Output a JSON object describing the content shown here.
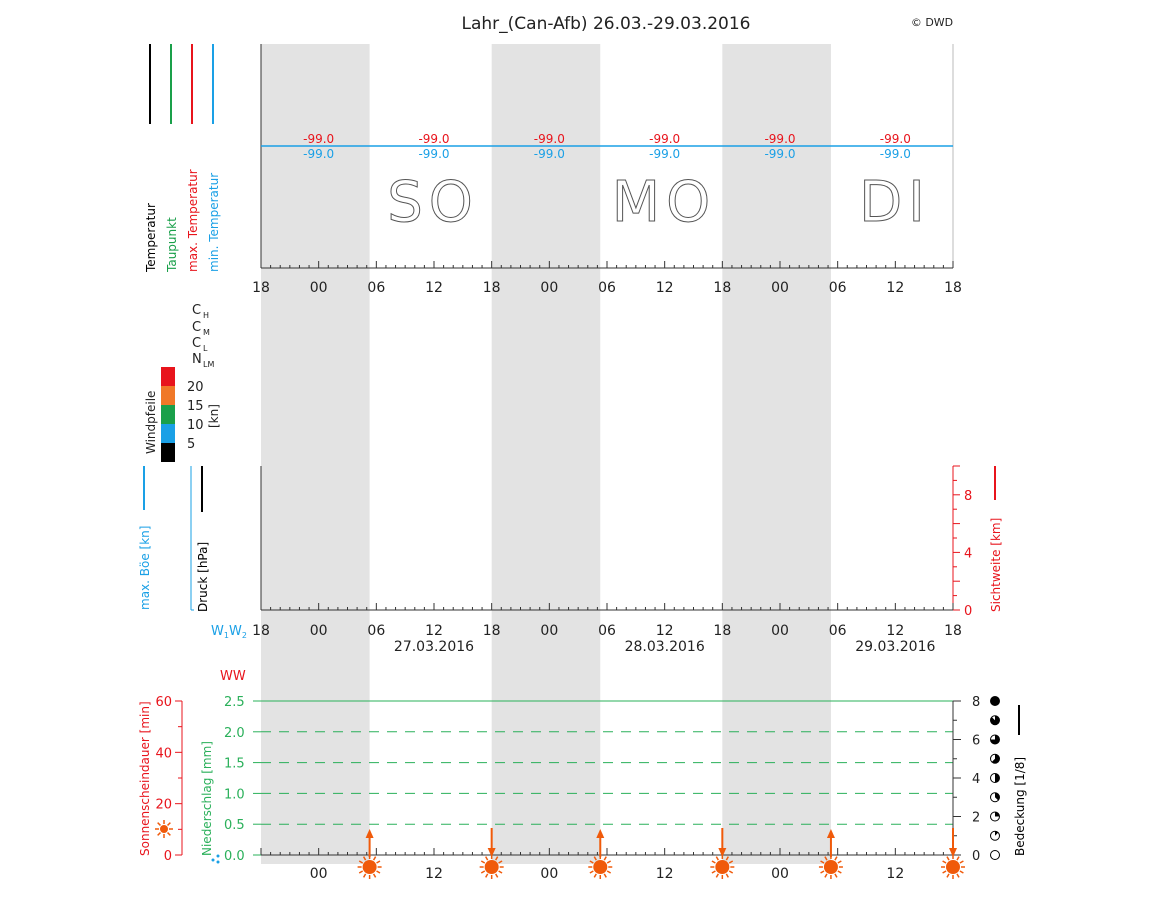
{
  "title": "Lahr_(Can-Afb) 26.03.-29.03.2016",
  "copyright": "© DWD",
  "colors": {
    "temperature": "#000000",
    "dewpoint": "#1aa04a",
    "max_temp": "#e8141c",
    "min_temp": "#1aa0e6",
    "gust": "#1aa0e6",
    "visibility": "#e8141c",
    "sunshine": "#e8141c",
    "precip": "#2ab05a",
    "sun_symbol": "#f05a0a",
    "night_shade": "#e3e3e3"
  },
  "legend": {
    "temperatur": "Temperatur",
    "taupunkt": "Taupunkt",
    "max_temperatur": "max. Temperatur",
    "min_temperatur": "min. Temperatur",
    "cloud_ch_sym": "C",
    "cloud_ch_sub": "H",
    "cloud_cm_sym": "C",
    "cloud_cm_sub": "M",
    "cloud_cl_sym": "C",
    "cloud_cl_sub": "L",
    "cloud_n_sym": "N",
    "cloud_n_sub": "LM",
    "windpfeile": "Windpfeile",
    "wind_unit": "[kn]",
    "wind_scale": [
      {
        "label": "20",
        "color": "#e8141c"
      },
      {
        "label": "15",
        "color": "#f07828"
      },
      {
        "label": "10",
        "color": "#1aa04a"
      },
      {
        "label": "5",
        "color": "#1aa0e6"
      },
      {
        "label": "",
        "color": "#000000"
      }
    ],
    "max_boe": "max. Böe [kn]",
    "druck": "Druck [hPa]",
    "sichtweite": "Sichtweite [km]",
    "w1w2": "W1W2",
    "ww": "WW",
    "sonnenschein": "Sonnenscheindauer [min]",
    "niederschlag": "Niederschlag [mm]",
    "bedeckung": "Bedeckung [1/8]"
  },
  "day_labels": [
    "SO",
    "MO",
    "DI"
  ],
  "date_labels": [
    "27.03.2016",
    "28.03.2016",
    "29.03.2016"
  ],
  "hour_ticks": [
    "18",
    "00",
    "06",
    "12",
    "18",
    "00",
    "06",
    "12",
    "18",
    "00",
    "06",
    "12",
    "18"
  ],
  "bottom_hour_ticks": [
    "00",
    "12",
    "00",
    "12",
    "00",
    "12"
  ],
  "chart_data": [
    {
      "type": "line",
      "name": "temperature panel",
      "x": [
        "18",
        "00",
        "06",
        "12",
        "18",
        "00",
        "06",
        "12",
        "18",
        "00",
        "06",
        "12",
        "18"
      ],
      "series": [
        {
          "name": "max. Temperatur",
          "labels": [
            "-99.0",
            "-99.0",
            "-99.0",
            "-99.0",
            "-99.0",
            "-99.0"
          ]
        },
        {
          "name": "min. Temperatur",
          "labels": [
            "-99.0",
            "-99.0",
            "-99.0",
            "-99.0",
            "-99.0",
            "-99.0"
          ]
        }
      ]
    },
    {
      "type": "line",
      "name": "gust / pressure / visibility panel",
      "x": [
        "18",
        "00",
        "06",
        "12",
        "18",
        "00",
        "06",
        "12",
        "18",
        "00",
        "06",
        "12",
        "18"
      ],
      "y_right_ticks": [
        "0",
        "4",
        "8"
      ],
      "y_right_label": "Sichtweite [km]",
      "ylim_right": [
        0,
        10
      ],
      "series": []
    },
    {
      "type": "bar",
      "name": "sunshine / precipitation / cloud cover panel",
      "x": [
        "00",
        "12",
        "00",
        "12",
        "00",
        "12"
      ],
      "y_left_ticks_sunshine": [
        "0",
        "20",
        "40",
        "60"
      ],
      "ylim_sunshine": [
        0,
        60
      ],
      "y_ticks_precip": [
        "0.0",
        "0.5",
        "1.0",
        "1.5",
        "2.0",
        "2.5"
      ],
      "ylim_precip": [
        0,
        2.5
      ],
      "y_right_ticks_cover": [
        "0",
        "2",
        "4",
        "6",
        "8"
      ],
      "ylim_cover": [
        0,
        8
      ],
      "sun_events": [
        {
          "event": "sunrise",
          "day": 0
        },
        {
          "event": "sunset",
          "day": 0
        },
        {
          "event": "sunrise",
          "day": 1
        },
        {
          "event": "sunset",
          "day": 1
        },
        {
          "event": "sunrise",
          "day": 2
        },
        {
          "event": "sunset",
          "day": 2
        }
      ],
      "series": []
    }
  ]
}
